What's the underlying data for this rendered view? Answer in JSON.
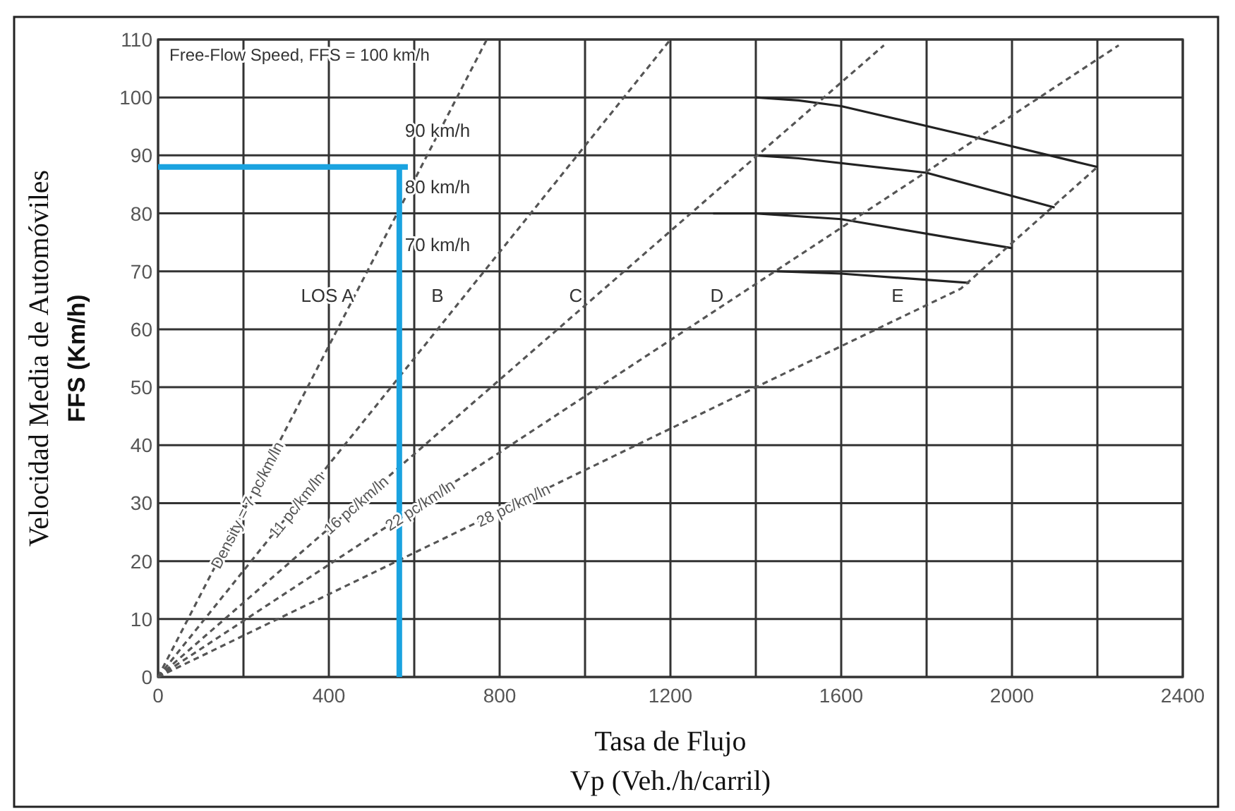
{
  "chart_data": {
    "type": "line",
    "xlabel": "Tasa de Flujo\nVp (Veh./h/carril)",
    "ylabel": "Velocidad Media de Automóviles\nFFS  (Km/h)",
    "xlim": [
      0,
      2400
    ],
    "ylim": [
      0,
      110
    ],
    "xticks": [
      0,
      {
        "value": 200,
        "label": null
      },
      400,
      {
        "value": 600,
        "label": null
      },
      800,
      {
        "value": 1000,
        "label": null
      },
      1200,
      {
        "value": 1400,
        "label": null
      },
      1600,
      {
        "value": 1800,
        "label": null
      },
      2000,
      {
        "value": 2200,
        "label": null
      },
      2400
    ],
    "yticks": [
      0,
      10,
      20,
      30,
      40,
      50,
      60,
      70,
      80,
      90,
      100,
      110
    ],
    "grid": true,
    "marker": "none",
    "series": [
      {
        "color": "#222222",
        "line_style": "solid",
        "x": [
          1400,
          1500,
          1600,
          1920,
          2200
        ],
        "values": [
          100,
          99.5,
          98.5,
          93,
          88
        ]
      },
      {
        "color": "#222222",
        "line_style": "solid",
        "x": [
          1400,
          1500,
          1800,
          2100
        ],
        "values": [
          90,
          89.5,
          87,
          81
        ]
      },
      {
        "color": "#222222",
        "line_style": "solid",
        "x": [
          1300,
          1400,
          1600,
          2000
        ],
        "values": [
          80,
          80,
          79,
          74
        ]
      },
      {
        "color": "#222222",
        "line_style": "solid",
        "x": [
          1450,
          1600,
          1900
        ],
        "values": [
          70,
          69.6,
          68
        ]
      },
      {
        "name": "Density = 7 pc/km/ln",
        "color": "#555555",
        "line_style": "dashed",
        "x": [
          0,
          770
        ],
        "values": [
          0,
          110
        ]
      },
      {
        "name": "11 pc/km/ln",
        "color": "#555555",
        "line_style": "dashed",
        "x": [
          0,
          1200
        ],
        "values": [
          0,
          110
        ]
      },
      {
        "name": "16 pc/km/ln",
        "color": "#555555",
        "line_style": "dashed",
        "x": [
          0,
          1700
        ],
        "values": [
          0,
          109
        ]
      },
      {
        "name": "22 pc/km/ln",
        "color": "#555555",
        "line_style": "dashed",
        "x": [
          0,
          2250
        ],
        "values": [
          0,
          109
        ]
      },
      {
        "name": "28 pc/km/ln",
        "color": "#555555",
        "line_style": "dashed",
        "x": [
          0,
          1400,
          1880,
          2200
        ],
        "values": [
          0,
          50,
          67,
          88
        ]
      },
      {
        "color": "#1aa3e0",
        "line_style": "solid",
        "x": [
          0,
          585
        ],
        "values": [
          88,
          88
        ]
      },
      {
        "color": "#1aa3e0",
        "line_style": "solid",
        "x": [
          565,
          565
        ],
        "values": [
          88,
          0
        ]
      }
    ],
    "annotations": [
      "Free-Flow Speed, FFS = 100 km/h",
      "90 km/h",
      "80 km/h",
      "70 km/h",
      "LOS A",
      "B",
      "C",
      "D",
      "E"
    ]
  }
}
